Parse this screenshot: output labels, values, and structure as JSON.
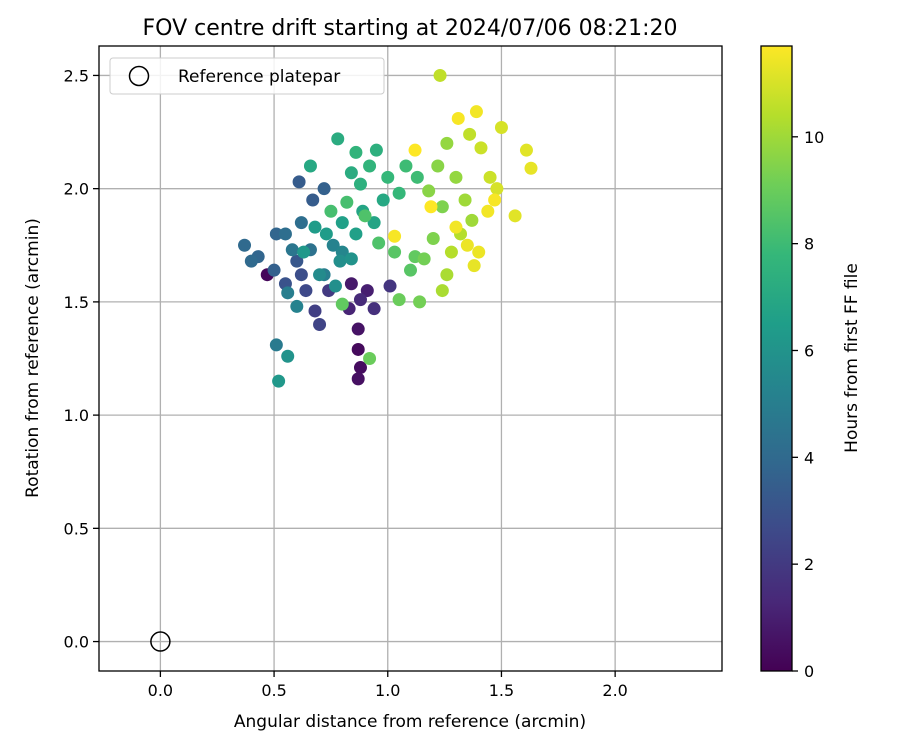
{
  "chart_data": {
    "type": "scatter",
    "title": "FOV centre drift starting at 2024/07/06 08:21:20",
    "xlabel": "Angular distance from reference (arcmin)",
    "ylabel": "Rotation from reference (arcmin)",
    "xlim": [
      -0.27,
      2.47
    ],
    "ylim": [
      -0.13,
      2.63
    ],
    "xticks": [
      0.0,
      0.5,
      1.0,
      1.5,
      2.0
    ],
    "xtick_labels": [
      "0.0",
      "0.5",
      "1.0",
      "1.5",
      "2.0"
    ],
    "yticks": [
      0.0,
      0.5,
      1.0,
      1.5,
      2.0,
      2.5
    ],
    "ytick_labels": [
      "0.0",
      "0.5",
      "1.0",
      "1.5",
      "2.0",
      "2.5"
    ],
    "grid": true,
    "legend": {
      "position": "top-left",
      "entries": [
        {
          "label": "Reference platepar",
          "marker": "open-circle"
        }
      ]
    },
    "reference_point": {
      "x": 0.0,
      "y": 0.0
    },
    "colorbar": {
      "label": "Hours from first FF file",
      "colormap": "viridis",
      "range": [
        0,
        11.7
      ],
      "ticks": [
        0,
        2,
        4,
        6,
        8,
        10
      ],
      "tick_labels": [
        "0",
        "2",
        "4",
        "6",
        "8",
        "10"
      ],
      "stops": [
        "#440154",
        "#482878",
        "#3e4989",
        "#31688e",
        "#26828e",
        "#1f9e89",
        "#35b779",
        "#6ece58",
        "#b5de2b",
        "#fde725"
      ]
    },
    "points": [
      [
        0.47,
        1.62,
        0.2
      ],
      [
        0.87,
        1.29,
        0.3
      ],
      [
        0.88,
        1.21,
        0.4
      ],
      [
        0.87,
        1.16,
        0.5
      ],
      [
        0.87,
        1.38,
        0.6
      ],
      [
        0.84,
        1.58,
        0.8
      ],
      [
        0.91,
        1.55,
        1.0
      ],
      [
        0.83,
        1.47,
        1.2
      ],
      [
        0.88,
        1.51,
        1.4
      ],
      [
        0.94,
        1.47,
        1.6
      ],
      [
        1.01,
        1.57,
        1.8
      ],
      [
        0.74,
        1.55,
        2.0
      ],
      [
        0.68,
        1.46,
        2.2
      ],
      [
        0.7,
        1.4,
        2.4
      ],
      [
        0.64,
        1.55,
        2.6
      ],
      [
        0.62,
        1.62,
        2.8
      ],
      [
        0.55,
        1.58,
        3.0
      ],
      [
        0.6,
        1.68,
        3.2
      ],
      [
        0.61,
        2.03,
        3.4
      ],
      [
        0.67,
        1.95,
        3.4
      ],
      [
        0.72,
        2.0,
        3.6
      ],
      [
        0.5,
        1.64,
        3.6
      ],
      [
        0.43,
        1.7,
        3.8
      ],
      [
        0.51,
        1.8,
        3.8
      ],
      [
        0.37,
        1.75,
        4.0
      ],
      [
        0.4,
        1.68,
        4.0
      ],
      [
        0.55,
        1.8,
        4.2
      ],
      [
        0.62,
        1.85,
        4.2
      ],
      [
        0.66,
        1.73,
        4.4
      ],
      [
        0.58,
        1.73,
        4.6
      ],
      [
        0.51,
        1.31,
        4.8
      ],
      [
        0.56,
        1.54,
        5.0
      ],
      [
        0.6,
        1.48,
        5.2
      ],
      [
        0.72,
        1.62,
        5.0
      ],
      [
        0.76,
        1.75,
        5.2
      ],
      [
        0.8,
        1.72,
        5.4
      ],
      [
        0.7,
        1.62,
        5.6
      ],
      [
        0.77,
        1.57,
        5.8
      ],
      [
        0.79,
        1.68,
        5.8
      ],
      [
        0.84,
        1.69,
        6.0
      ],
      [
        0.56,
        1.26,
        6.0
      ],
      [
        0.52,
        1.15,
        6.2
      ],
      [
        0.63,
        1.72,
        6.2
      ],
      [
        0.68,
        1.83,
        6.4
      ],
      [
        0.73,
        1.8,
        6.4
      ],
      [
        0.8,
        1.85,
        6.6
      ],
      [
        0.86,
        1.8,
        6.6
      ],
      [
        0.89,
        1.9,
        6.8
      ],
      [
        0.94,
        1.85,
        6.8
      ],
      [
        0.98,
        1.95,
        7.0
      ],
      [
        0.66,
        2.1,
        7.0
      ],
      [
        0.78,
        2.22,
        7.2
      ],
      [
        0.84,
        2.07,
        7.2
      ],
      [
        0.88,
        2.02,
        7.4
      ],
      [
        0.95,
        2.17,
        7.4
      ],
      [
        0.86,
        2.16,
        7.6
      ],
      [
        0.92,
        2.1,
        7.6
      ],
      [
        1.0,
        2.05,
        7.8
      ],
      [
        1.05,
        1.98,
        7.8
      ],
      [
        1.08,
        2.1,
        8.0
      ],
      [
        1.13,
        2.05,
        8.0
      ],
      [
        0.75,
        1.9,
        8.2
      ],
      [
        0.82,
        1.94,
        8.2
      ],
      [
        0.9,
        1.88,
        8.4
      ],
      [
        0.96,
        1.76,
        8.4
      ],
      [
        1.03,
        1.72,
        8.6
      ],
      [
        1.1,
        1.64,
        8.6
      ],
      [
        1.12,
        1.7,
        8.8
      ],
      [
        0.8,
        1.49,
        8.8
      ],
      [
        0.92,
        1.25,
        9.0
      ],
      [
        1.05,
        1.51,
        9.0
      ],
      [
        1.14,
        1.5,
        9.2
      ],
      [
        1.16,
        1.69,
        9.2
      ],
      [
        1.2,
        1.78,
        9.4
      ],
      [
        1.24,
        1.92,
        9.4
      ],
      [
        1.18,
        1.99,
        9.6
      ],
      [
        1.22,
        2.1,
        9.6
      ],
      [
        1.26,
        2.2,
        9.8
      ],
      [
        1.3,
        2.05,
        9.8
      ],
      [
        1.34,
        1.95,
        10.0
      ],
      [
        1.37,
        1.86,
        10.0
      ],
      [
        1.26,
        1.62,
        10.2
      ],
      [
        1.24,
        1.55,
        10.2
      ],
      [
        1.28,
        1.72,
        10.4
      ],
      [
        1.32,
        1.8,
        10.4
      ],
      [
        1.23,
        2.5,
        10.6
      ],
      [
        1.36,
        2.24,
        10.6
      ],
      [
        1.41,
        2.18,
        10.8
      ],
      [
        1.45,
        2.05,
        10.8
      ],
      [
        1.48,
        2.0,
        11.0
      ],
      [
        1.5,
        2.27,
        11.0
      ],
      [
        1.56,
        1.88,
        11.2
      ],
      [
        1.61,
        2.17,
        11.2
      ],
      [
        1.63,
        2.09,
        11.3
      ],
      [
        1.38,
        1.66,
        11.3
      ],
      [
        1.4,
        1.72,
        11.4
      ],
      [
        1.35,
        1.75,
        11.4
      ],
      [
        1.3,
        1.83,
        11.5
      ],
      [
        1.39,
        2.34,
        11.5
      ],
      [
        1.31,
        2.31,
        11.6
      ],
      [
        1.03,
        1.79,
        11.6
      ],
      [
        1.19,
        1.92,
        11.7
      ],
      [
        1.12,
        2.17,
        11.7
      ],
      [
        1.44,
        1.9,
        11.5
      ],
      [
        1.47,
        1.95,
        11.6
      ]
    ]
  }
}
